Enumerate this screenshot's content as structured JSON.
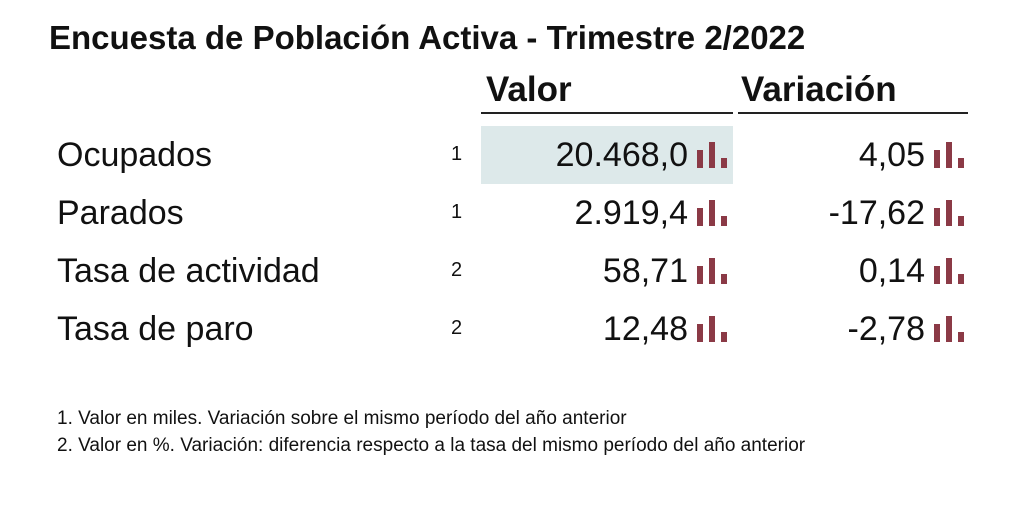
{
  "title": "Encuesta de Población Activa - Trimestre 2/2022",
  "columns": {
    "valor": "Valor",
    "variacion": "Variación"
  },
  "rows": [
    {
      "label": "Ocupados",
      "note": "1",
      "valor": "20.468,0",
      "variacion": "4,05"
    },
    {
      "label": "Parados",
      "note": "1",
      "valor": "2.919,4",
      "variacion": "-17,62"
    },
    {
      "label": "Tasa de actividad",
      "note": "2",
      "valor": "58,71",
      "variacion": "0,14"
    },
    {
      "label": "Tasa de paro",
      "note": "2",
      "valor": "12,48",
      "variacion": "-2,78"
    }
  ],
  "footnotes": [
    "1. Valor en miles. Variación sobre el mismo período del año anterior",
    "2. Valor en %. Variación: diferencia respecto a la tasa del mismo período del año anterior"
  ],
  "icons": {
    "chart": "bar-chart-icon"
  },
  "colors": {
    "chart_icon": "#8b3a46",
    "highlight": "#dde9ea"
  }
}
